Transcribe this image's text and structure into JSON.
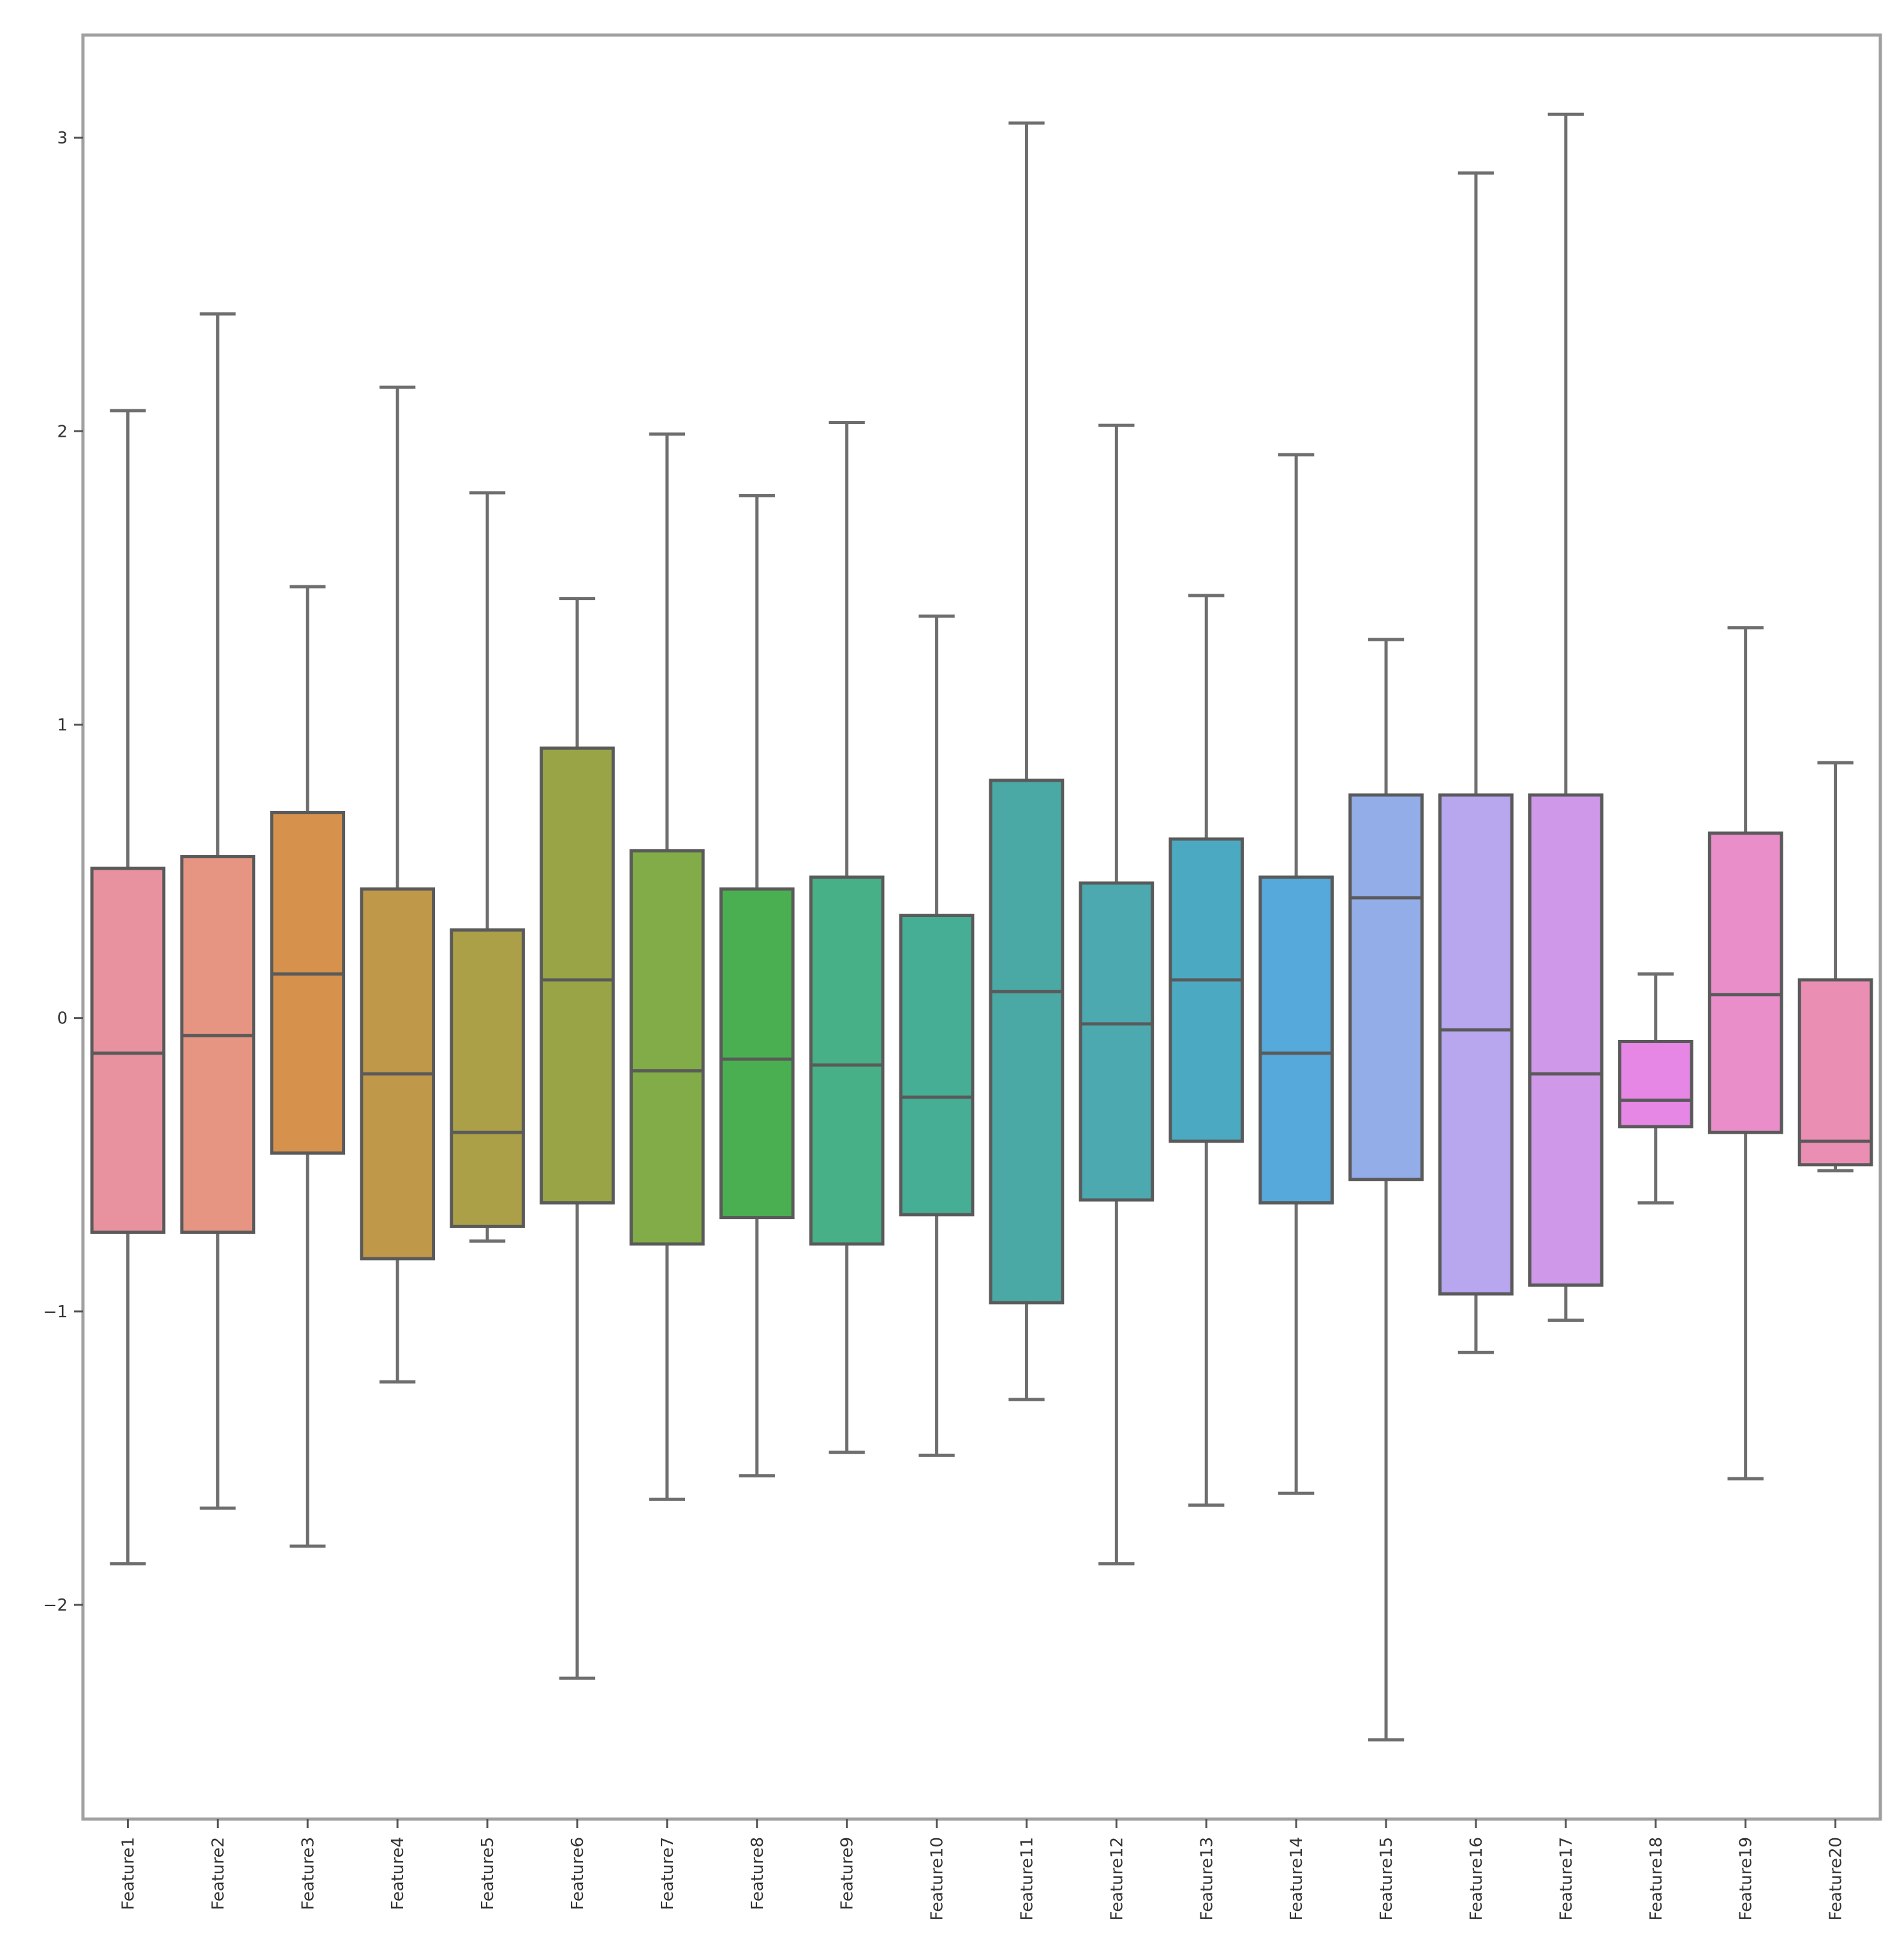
{
  "chart_data": {
    "type": "box",
    "title": "",
    "xlabel": "",
    "ylabel": "",
    "ylim": [
      -2.73,
      3.35
    ],
    "yticks": [
      -2,
      -1,
      0,
      1,
      2,
      3
    ],
    "ytick_labels": [
      "−2",
      "−1",
      "0",
      "1",
      "2",
      "3"
    ],
    "grid": false,
    "legend": null,
    "categories": [
      "Feature1",
      "Feature2",
      "Feature3",
      "Feature4",
      "Feature5",
      "Feature6",
      "Feature7",
      "Feature8",
      "Feature9",
      "Feature10",
      "Feature11",
      "Feature12",
      "Feature13",
      "Feature14",
      "Feature15",
      "Feature16",
      "Feature17",
      "Feature18",
      "Feature19",
      "Feature20"
    ],
    "series": [
      {
        "name": "Feature1",
        "whisker_low": -1.86,
        "q1": -0.73,
        "median": -0.12,
        "q3": 0.51,
        "whisker_high": 2.07,
        "color": "#E8929F"
      },
      {
        "name": "Feature2",
        "whisker_low": -1.67,
        "q1": -0.73,
        "median": -0.06,
        "q3": 0.55,
        "whisker_high": 2.4,
        "color": "#E69583"
      },
      {
        "name": "Feature3",
        "whisker_low": -1.8,
        "q1": -0.46,
        "median": 0.15,
        "q3": 0.7,
        "whisker_high": 1.47,
        "color": "#D6924D"
      },
      {
        "name": "Feature4",
        "whisker_low": -1.24,
        "q1": -0.82,
        "median": -0.19,
        "q3": 0.44,
        "whisker_high": 2.15,
        "color": "#BF9849"
      },
      {
        "name": "Feature5",
        "whisker_low": -0.76,
        "q1": -0.71,
        "median": -0.39,
        "q3": 0.3,
        "whisker_high": 1.79,
        "color": "#AB9F48"
      },
      {
        "name": "Feature6",
        "whisker_low": -2.25,
        "q1": -0.63,
        "median": 0.13,
        "q3": 0.92,
        "whisker_high": 1.43,
        "color": "#99A447"
      },
      {
        "name": "Feature7",
        "whisker_low": -1.64,
        "q1": -0.77,
        "median": -0.18,
        "q3": 0.57,
        "whisker_high": 1.99,
        "color": "#81AC47"
      },
      {
        "name": "Feature8",
        "whisker_low": -1.56,
        "q1": -0.68,
        "median": -0.14,
        "q3": 0.44,
        "whisker_high": 1.78,
        "color": "#4AAF50"
      },
      {
        "name": "Feature9",
        "whisker_low": -1.48,
        "q1": -0.77,
        "median": -0.16,
        "q3": 0.48,
        "whisker_high": 2.03,
        "color": "#48B087"
      },
      {
        "name": "Feature10",
        "whisker_low": -1.49,
        "q1": -0.67,
        "median": -0.27,
        "q3": 0.35,
        "whisker_high": 1.37,
        "color": "#47AE96"
      },
      {
        "name": "Feature11",
        "whisker_low": -1.3,
        "q1": -0.97,
        "median": 0.09,
        "q3": 0.81,
        "whisker_high": 3.05,
        "color": "#4AA9A4"
      },
      {
        "name": "Feature12",
        "whisker_low": -1.86,
        "q1": -0.62,
        "median": -0.02,
        "q3": 0.46,
        "whisker_high": 2.02,
        "color": "#4BA9AF"
      },
      {
        "name": "Feature13",
        "whisker_low": -1.66,
        "q1": -0.42,
        "median": 0.13,
        "q3": 0.61,
        "whisker_high": 1.44,
        "color": "#4CA9C2"
      },
      {
        "name": "Feature14",
        "whisker_low": -1.62,
        "q1": -0.63,
        "median": -0.12,
        "q3": 0.48,
        "whisker_high": 1.92,
        "color": "#55A9DB"
      },
      {
        "name": "Feature15",
        "whisker_low": -2.46,
        "q1": -0.55,
        "median": 0.41,
        "q3": 0.76,
        "whisker_high": 1.29,
        "color": "#93ADE8"
      },
      {
        "name": "Feature16",
        "whisker_low": -1.14,
        "q1": -0.94,
        "median": -0.04,
        "q3": 0.76,
        "whisker_high": 2.88,
        "color": "#B8A6EE"
      },
      {
        "name": "Feature17",
        "whisker_low": -1.03,
        "q1": -0.91,
        "median": -0.19,
        "q3": 0.76,
        "whisker_high": 3.08,
        "color": "#CF98E8"
      },
      {
        "name": "Feature18",
        "whisker_low": -0.63,
        "q1": -0.37,
        "median": -0.28,
        "q3": -0.08,
        "whisker_high": 0.15,
        "color": "#E686E5"
      },
      {
        "name": "Feature19",
        "whisker_low": -1.57,
        "q1": -0.39,
        "median": 0.08,
        "q3": 0.63,
        "whisker_high": 1.33,
        "color": "#EA8EC9"
      },
      {
        "name": "Feature20",
        "whisker_low": -0.52,
        "q1": -0.5,
        "median": -0.42,
        "q3": 0.13,
        "whisker_high": 0.87,
        "color": "#EA8FB3"
      }
    ],
    "style": {
      "line_color": "#5a5a5a",
      "whisker_color": "#6e6e6e",
      "frame_color": "#a0a0a0",
      "background": "#ffffff"
    }
  }
}
